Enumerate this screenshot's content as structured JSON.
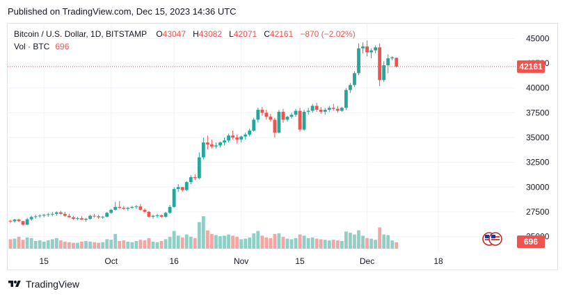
{
  "header": {
    "published": "Published on TradingView.com, Dec 15, 2023 14:36 UTC"
  },
  "legend": {
    "symbol": "Bitcoin / U.S. Dollar, 1D, BITSTAMP",
    "o_key": "O",
    "o": "43047",
    "h_key": "H",
    "h": "43082",
    "l_key": "L",
    "l": "42071",
    "c_key": "C",
    "c": "42161",
    "change": "−870 (−2.02%)",
    "vol_label": "Vol · BTC",
    "vol_value": "696"
  },
  "footer": {
    "brand": "TradingView",
    "logo_icon": "tradingview-logo-icon"
  },
  "colors": {
    "up": "#26a69a",
    "down": "#ef5350",
    "up_vol": "#8fcfc6",
    "down_vol": "#f3a6a4",
    "grid": "#f0f3fa",
    "axis_text": "#131722"
  },
  "chart_data": {
    "type": "candlestick",
    "ylim": [
      23500,
      46500
    ],
    "yticks": [
      25000,
      27500,
      30000,
      32500,
      35000,
      37500,
      40000,
      42500,
      45000
    ],
    "xticks": [
      {
        "label": "15",
        "index": 8
      },
      {
        "label": "Oct",
        "index": 24
      },
      {
        "label": "16",
        "index": 39
      },
      {
        "label": "Nov",
        "index": 55
      },
      {
        "label": "15",
        "index": 69
      },
      {
        "label": "Dec",
        "index": 85
      },
      {
        "label": "18",
        "index": 102
      }
    ],
    "last_price": 42161,
    "last_volume": 696,
    "flags_icon": "us-flag-icon",
    "candles": [
      [
        26600,
        26700,
        26350,
        26550,
        0.16
      ],
      [
        26550,
        26800,
        26400,
        26720,
        0.17
      ],
      [
        26720,
        26800,
        26500,
        26560,
        0.2
      ],
      [
        26560,
        26600,
        26100,
        26200,
        0.15
      ],
      [
        26200,
        26900,
        26150,
        26750,
        0.19
      ],
      [
        26750,
        27100,
        26600,
        26980,
        0.18
      ],
      [
        26980,
        27200,
        26800,
        27050,
        0.13
      ],
      [
        27050,
        27250,
        26900,
        27120,
        0.14
      ],
      [
        27120,
        27300,
        26950,
        27200,
        0.12
      ],
      [
        27200,
        27400,
        27000,
        27250,
        0.14
      ],
      [
        27250,
        27500,
        27050,
        27300,
        0.16
      ],
      [
        27300,
        27550,
        27100,
        27450,
        0.18
      ],
      [
        27450,
        27600,
        27200,
        27300,
        0.14
      ],
      [
        27300,
        27500,
        27000,
        27100,
        0.12
      ],
      [
        27100,
        27300,
        26900,
        26950,
        0.11
      ],
      [
        26950,
        27100,
        26700,
        26800,
        0.1
      ],
      [
        26800,
        27000,
        26650,
        26850,
        0.1
      ],
      [
        26850,
        27050,
        26700,
        26700,
        0.12
      ],
      [
        26700,
        26900,
        26500,
        26800,
        0.13
      ],
      [
        26800,
        27200,
        26700,
        27100,
        0.12
      ],
      [
        27100,
        27300,
        26900,
        27050,
        0.11
      ],
      [
        27050,
        27200,
        26800,
        26950,
        0.1
      ],
      [
        26950,
        27100,
        26800,
        27000,
        0.11
      ],
      [
        27000,
        27500,
        26950,
        27400,
        0.16
      ],
      [
        27400,
        27800,
        27300,
        27700,
        0.15
      ],
      [
        27700,
        28500,
        27600,
        28000,
        0.25
      ],
      [
        28000,
        28600,
        27800,
        27900,
        0.13
      ],
      [
        27900,
        28100,
        27700,
        27800,
        0.14
      ],
      [
        27800,
        28000,
        27600,
        27900,
        0.12
      ],
      [
        27900,
        28100,
        27800,
        28000,
        0.11
      ],
      [
        28000,
        28200,
        27800,
        28050,
        0.13
      ],
      [
        28050,
        28300,
        27600,
        27700,
        0.15
      ],
      [
        27700,
        27850,
        27400,
        27500,
        0.14
      ],
      [
        27500,
        27600,
        26900,
        27000,
        0.18
      ],
      [
        27000,
        27200,
        26800,
        27100,
        0.12
      ],
      [
        27100,
        27300,
        26900,
        27150,
        0.11
      ],
      [
        27150,
        27250,
        26900,
        27000,
        0.13
      ],
      [
        27000,
        27500,
        26900,
        27400,
        0.16
      ],
      [
        27400,
        28200,
        27300,
        28000,
        0.2
      ],
      [
        28000,
        30000,
        27900,
        29800,
        0.3
      ],
      [
        29800,
        30300,
        29500,
        30000,
        0.22
      ],
      [
        30000,
        29800,
        29500,
        29700,
        0.19
      ],
      [
        29700,
        30600,
        29600,
        30500,
        0.24
      ],
      [
        30500,
        31200,
        30300,
        31000,
        0.2
      ],
      [
        31000,
        31300,
        30700,
        30900,
        0.18
      ],
      [
        30900,
        33500,
        30800,
        33000,
        0.45
      ],
      [
        33000,
        35000,
        32800,
        34500,
        0.55
      ],
      [
        34500,
        35200,
        33800,
        34300,
        0.31
      ],
      [
        34300,
        34800,
        33900,
        34100,
        0.25
      ],
      [
        34100,
        34500,
        33900,
        34200,
        0.23
      ],
      [
        34200,
        34600,
        34000,
        34500,
        0.21
      ],
      [
        34500,
        35000,
        34200,
        34700,
        0.22
      ],
      [
        34700,
        35400,
        34500,
        35200,
        0.24
      ],
      [
        35200,
        35700,
        34800,
        35000,
        0.22
      ],
      [
        35000,
        35300,
        34400,
        34800,
        0.2
      ],
      [
        34800,
        35200,
        34500,
        35100,
        0.16
      ],
      [
        35100,
        35500,
        34800,
        35300,
        0.17
      ],
      [
        35300,
        35900,
        35100,
        35700,
        0.19
      ],
      [
        35700,
        37000,
        35600,
        36800,
        0.26
      ],
      [
        36800,
        38000,
        36500,
        37800,
        0.3
      ],
      [
        37800,
        38100,
        37200,
        37500,
        0.22
      ],
      [
        37500,
        37800,
        36800,
        37100,
        0.19
      ],
      [
        37100,
        37400,
        36600,
        36800,
        0.18
      ],
      [
        36800,
        37000,
        35000,
        35500,
        0.25
      ],
      [
        35500,
        37800,
        35400,
        37600,
        0.26
      ],
      [
        37600,
        37900,
        36500,
        36800,
        0.2
      ],
      [
        36800,
        37200,
        36600,
        37100,
        0.17
      ],
      [
        37100,
        37500,
        36900,
        37300,
        0.16
      ],
      [
        37300,
        37900,
        37100,
        37700,
        0.18
      ],
      [
        37700,
        38000,
        35600,
        35800,
        0.24
      ],
      [
        35800,
        37800,
        35700,
        37600,
        0.22
      ],
      [
        37600,
        38000,
        37300,
        37700,
        0.18
      ],
      [
        37700,
        38400,
        37500,
        38200,
        0.19
      ],
      [
        38200,
        38500,
        37600,
        37800,
        0.17
      ],
      [
        37800,
        38100,
        37400,
        37600,
        0.16
      ],
      [
        37600,
        38000,
        37300,
        37800,
        0.15
      ],
      [
        37800,
        38200,
        37600,
        38000,
        0.14
      ],
      [
        38000,
        38400,
        37700,
        37900,
        0.15
      ],
      [
        37900,
        38200,
        37500,
        37700,
        0.14
      ],
      [
        37700,
        38100,
        37600,
        38000,
        0.13
      ],
      [
        38000,
        40000,
        37800,
        39800,
        0.29
      ],
      [
        39800,
        40500,
        39500,
        40300,
        0.27
      ],
      [
        40300,
        41700,
        40100,
        41500,
        0.24
      ],
      [
        41500,
        44500,
        41300,
        44000,
        0.31
      ],
      [
        44000,
        44600,
        43500,
        44200,
        0.22
      ],
      [
        44200,
        44800,
        43200,
        43600,
        0.18
      ],
      [
        43600,
        44000,
        43000,
        43800,
        0.17
      ],
      [
        43800,
        44300,
        43500,
        44100,
        0.15
      ],
      [
        44100,
        44500,
        40200,
        40800,
        0.36
      ],
      [
        40800,
        42700,
        40600,
        42300,
        0.24
      ],
      [
        42300,
        43400,
        41500,
        43000,
        0.23
      ],
      [
        43000,
        43200,
        42800,
        43100,
        0.14
      ],
      [
        43047,
        43082,
        42071,
        42161,
        0.11
      ]
    ]
  }
}
